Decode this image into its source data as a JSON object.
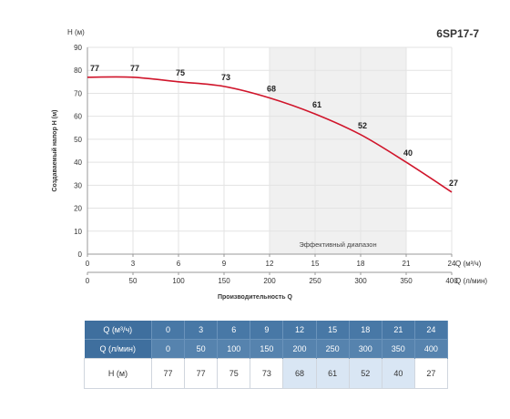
{
  "header": {
    "model": "6SP17-7"
  },
  "chart_data": {
    "type": "line",
    "ylabel": "Создаваемый напор Н (м)",
    "yunit_label": "Н (м)",
    "xlabel": "Производительность Q",
    "x_axis_primary": {
      "label": "Q (м³/ч)",
      "ticks": [
        0,
        3,
        6,
        9,
        12,
        15,
        18,
        21,
        24
      ]
    },
    "x_axis_secondary": {
      "label": "Q (л/мин)",
      "ticks": [
        0,
        50,
        100,
        150,
        200,
        250,
        300,
        350,
        400
      ]
    },
    "ylim": [
      0,
      90
    ],
    "yticks": [
      0,
      10,
      20,
      30,
      40,
      50,
      60,
      70,
      80,
      90
    ],
    "xlim": [
      0,
      24
    ],
    "grid": true,
    "efficient_range": {
      "label": "Эффективный диапазон",
      "from": 12,
      "to": 21
    },
    "series": [
      {
        "x": [
          0,
          3,
          6,
          9,
          12,
          15,
          18,
          21,
          24
        ],
        "values": [
          77,
          77,
          75,
          73,
          68,
          61,
          52,
          40,
          27
        ],
        "color": "#d0152b"
      }
    ]
  },
  "table": {
    "rows": [
      {
        "label": "Q (м³/ч)",
        "values": [
          "0",
          "3",
          "6",
          "9",
          "12",
          "15",
          "18",
          "21",
          "24"
        ]
      },
      {
        "label": "Q (л/мин)",
        "values": [
          "0",
          "50",
          "100",
          "150",
          "200",
          "250",
          "300",
          "350",
          "400"
        ]
      },
      {
        "label": "Н (м)",
        "values": [
          "77",
          "77",
          "75",
          "73",
          "68",
          "61",
          "52",
          "40",
          "27"
        ]
      }
    ],
    "highlight_columns": [
      4,
      5,
      6,
      7
    ],
    "header_color": "#4878a6",
    "highlight_color": "#d9e6f4"
  }
}
